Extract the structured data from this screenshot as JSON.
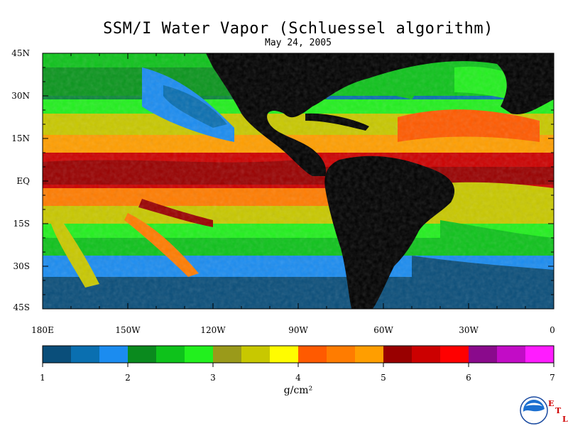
{
  "title": "SSM/I Water Vapor (Schluessel algorithm)",
  "date": "May 24, 2005",
  "lat_labels": [
    "45N",
    "30N",
    "15N",
    "EQ",
    "15S",
    "30S",
    "45S"
  ],
  "lon_labels": [
    "180E",
    "150W",
    "120W",
    "90W",
    "60W",
    "30W",
    "0"
  ],
  "colorbar": {
    "ticks": [
      "1",
      "2",
      "3",
      "4",
      "5",
      "6",
      "7"
    ],
    "units": "g/cm²",
    "colors": [
      "#0a4e7a",
      "#0a6fb0",
      "#1b8cf0",
      "#0a8a1e",
      "#0ec21b",
      "#22f01e",
      "#9a9a1a",
      "#c8c800",
      "#fffc00",
      "#ff5a00",
      "#ff7c00",
      "#ff9e00",
      "#990000",
      "#cc0000",
      "#ff0000",
      "#8a0a8c",
      "#c20cc6",
      "#ff1cff"
    ]
  },
  "map": {
    "land_color": "#000000",
    "lat_range": [
      -45,
      45
    ],
    "lon_range": [
      -180,
      0
    ]
  },
  "logo": {
    "name": "NOAA",
    "letters": [
      "E",
      "T",
      "L"
    ]
  }
}
